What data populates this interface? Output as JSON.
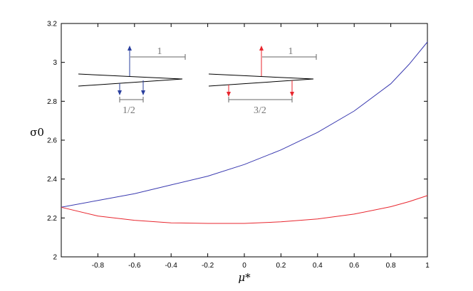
{
  "chart_data": {
    "type": "line",
    "title": "",
    "xlabel": "μ*",
    "ylabel": "σ0",
    "xlim": [
      -1,
      1
    ],
    "ylim": [
      2,
      3.2
    ],
    "x_ticks": [
      "-0.8",
      "-0.6",
      "-0.4",
      "-0.2",
      "0",
      "0.2",
      "0.4",
      "0.6",
      "0.8",
      "1"
    ],
    "x_tick_values": [
      -0.8,
      -0.6,
      -0.4,
      -0.2,
      0,
      0.2,
      0.4,
      0.6,
      0.8,
      1
    ],
    "y_ticks": [
      "2",
      "2.2",
      "2.4",
      "2.6",
      "2.8",
      "3",
      "3.2"
    ],
    "y_tick_values": [
      2,
      2.2,
      2.4,
      2.6,
      2.8,
      3,
      3.2
    ],
    "grid": false,
    "x": [
      -1,
      -0.8,
      -0.6,
      -0.4,
      -0.2,
      0,
      0.2,
      0.4,
      0.6,
      0.8,
      0.9,
      1
    ],
    "series": [
      {
        "color": "#3a3ab0",
        "values": [
          2.255,
          2.29,
          2.325,
          2.37,
          2.415,
          2.475,
          2.55,
          2.64,
          2.75,
          2.89,
          2.99,
          3.105
        ]
      },
      {
        "color": "#e8262e",
        "values": [
          2.255,
          2.21,
          2.188,
          2.175,
          2.172,
          2.172,
          2.18,
          2.195,
          2.22,
          2.258,
          2.284,
          2.315
        ]
      }
    ],
    "insets": [
      {
        "label": "1",
        "sublabel": "1/2",
        "arrow_color": "#2a3f9e"
      },
      {
        "label": "1",
        "sublabel": "3/2",
        "arrow_color": "#e8262e"
      }
    ]
  }
}
